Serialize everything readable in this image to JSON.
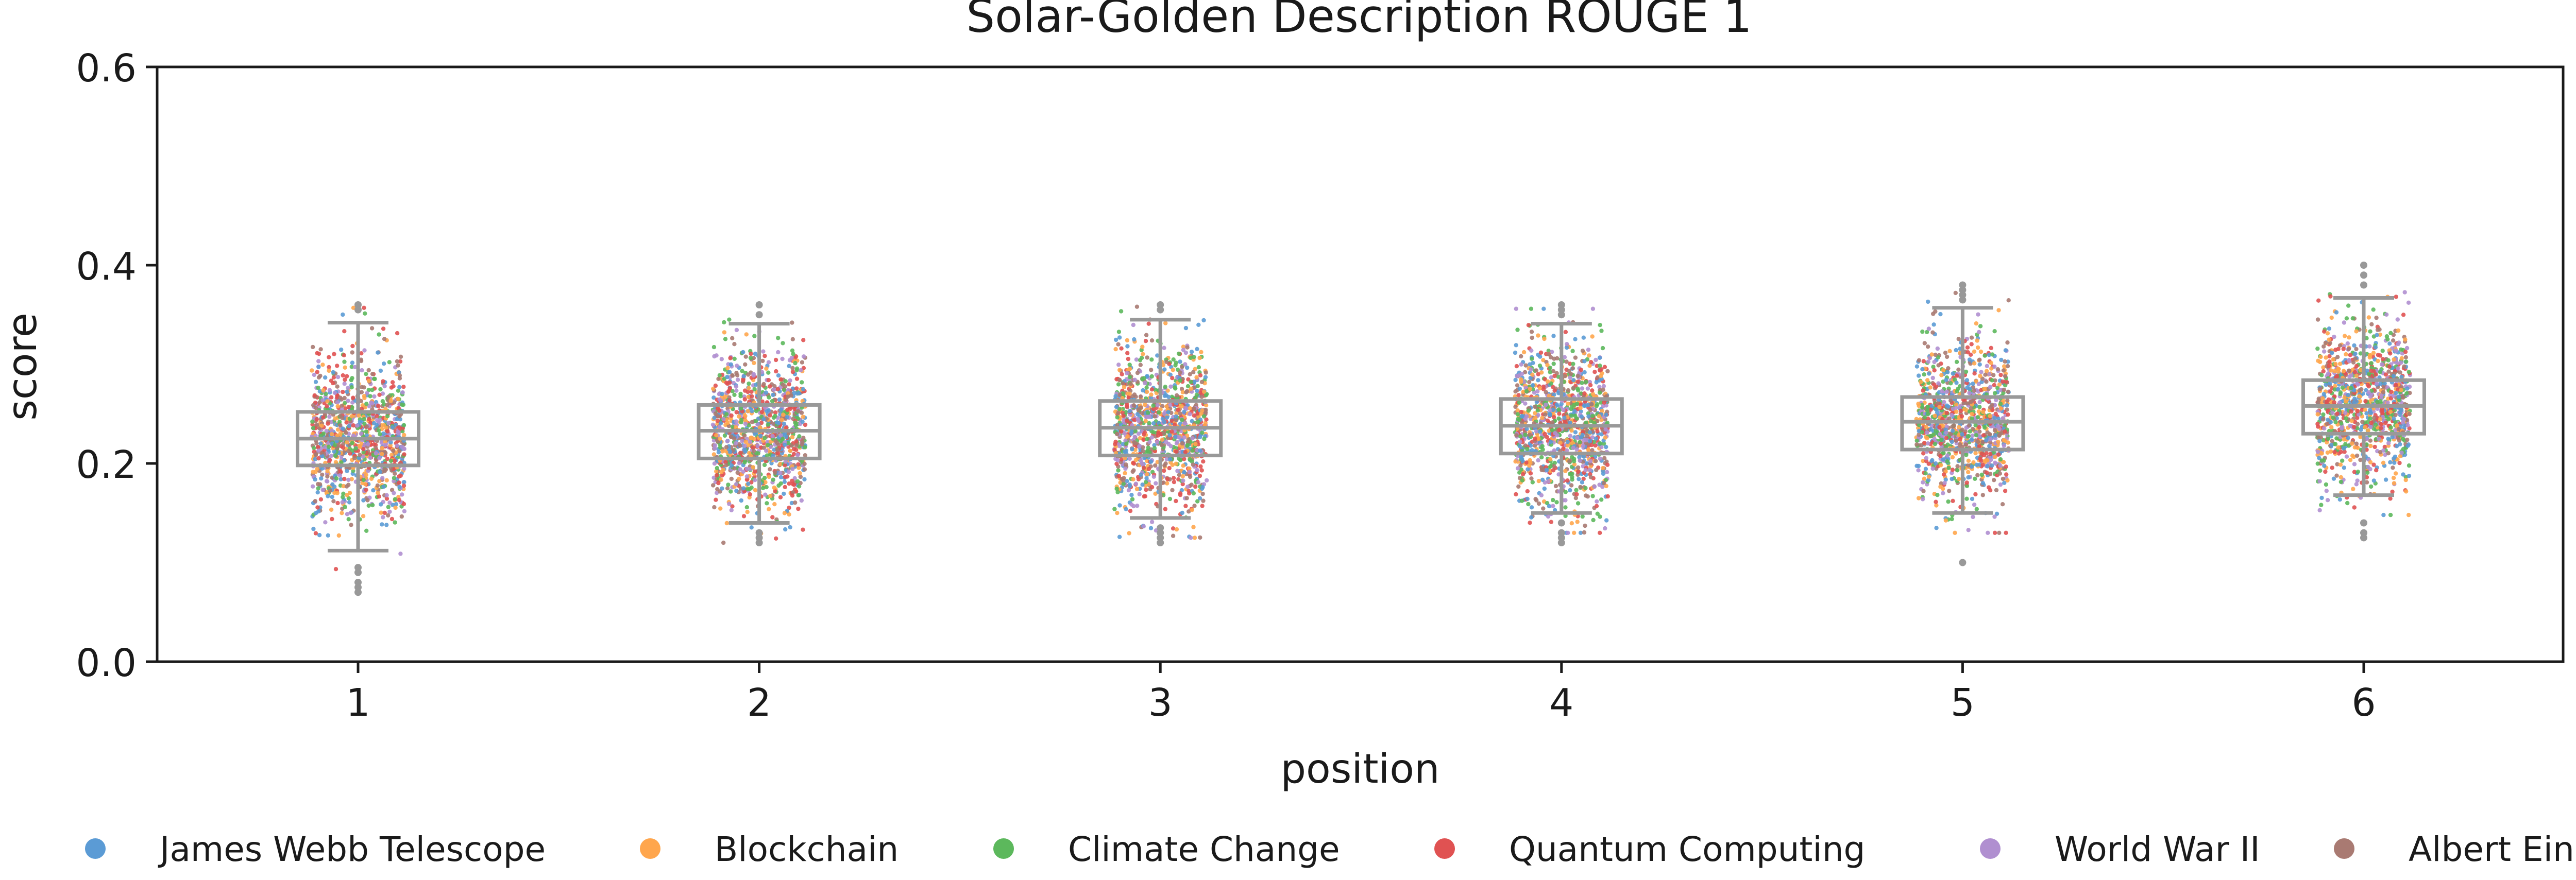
{
  "chart_data": {
    "type": "scatter",
    "title": "Solar-Golden Description ROUGE 1",
    "xlabel": "position",
    "ylabel": "score",
    "categories": [
      "1",
      "2",
      "3",
      "4",
      "5",
      "6"
    ],
    "ylim": [
      0.0,
      0.6
    ],
    "yticks": [
      "0.0",
      "0.2",
      "0.4",
      "0.6"
    ],
    "grid": false,
    "legend_position": "bottom",
    "box_color": "#999999",
    "series": [
      {
        "name": "James Webb Telescope",
        "color": "#5b9bd5"
      },
      {
        "name": "Blockchain",
        "color": "#ffa64d"
      },
      {
        "name": "Climate Change",
        "color": "#5cb85c"
      },
      {
        "name": "Quantum Computing",
        "color": "#e05252"
      },
      {
        "name": "World War II",
        "color": "#b08fd0"
      },
      {
        "name": "Albert Einstein",
        "color": "#a97a72"
      }
    ],
    "boxes": [
      {
        "position": "1",
        "whisker_low": 0.112,
        "q1": 0.198,
        "median": 0.225,
        "q3": 0.252,
        "whisker_high": 0.342,
        "outliers": [
          0.07,
          0.075,
          0.08,
          0.09,
          0.095,
          0.355,
          0.36
        ]
      },
      {
        "position": "2",
        "whisker_low": 0.14,
        "q1": 0.205,
        "median": 0.233,
        "q3": 0.259,
        "whisker_high": 0.341,
        "outliers": [
          0.12,
          0.125,
          0.13,
          0.35,
          0.36
        ]
      },
      {
        "position": "3",
        "whisker_low": 0.145,
        "q1": 0.208,
        "median": 0.236,
        "q3": 0.263,
        "whisker_high": 0.345,
        "outliers": [
          0.12,
          0.125,
          0.13,
          0.135,
          0.355,
          0.36
        ]
      },
      {
        "position": "4",
        "whisker_low": 0.15,
        "q1": 0.21,
        "median": 0.238,
        "q3": 0.265,
        "whisker_high": 0.341,
        "outliers": [
          0.12,
          0.125,
          0.13,
          0.14,
          0.35,
          0.355,
          0.36
        ]
      },
      {
        "position": "5",
        "whisker_low": 0.15,
        "q1": 0.214,
        "median": 0.242,
        "q3": 0.267,
        "whisker_high": 0.357,
        "outliers": [
          0.1,
          0.365,
          0.37,
          0.375,
          0.38
        ]
      },
      {
        "position": "6",
        "whisker_low": 0.168,
        "q1": 0.23,
        "median": 0.258,
        "q3": 0.284,
        "whisker_high": 0.367,
        "outliers": [
          0.125,
          0.13,
          0.14,
          0.38,
          0.39,
          0.4
        ]
      }
    ]
  }
}
